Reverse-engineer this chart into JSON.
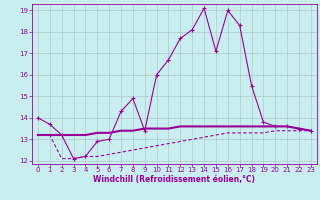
{
  "xlabel": "Windchill (Refroidissement éolien,°C)",
  "background_color": "#c8eef0",
  "grid_color": "#b0c8c8",
  "line_color": "#990099",
  "xmin": 0,
  "xmax": 23,
  "ymin": 12,
  "ymax": 19,
  "yticks": [
    12,
    13,
    14,
    15,
    16,
    17,
    18,
    19
  ],
  "xticks": [
    0,
    1,
    2,
    3,
    4,
    5,
    6,
    7,
    8,
    9,
    10,
    11,
    12,
    13,
    14,
    15,
    16,
    17,
    18,
    19,
    20,
    21,
    22,
    23
  ],
  "curve1_x": [
    0,
    1,
    2,
    3,
    4,
    5,
    6,
    7,
    8,
    9,
    10,
    11,
    12,
    13,
    14,
    15,
    16,
    17,
    18,
    19,
    20,
    21,
    22,
    23
  ],
  "curve1_y": [
    14.0,
    13.7,
    13.2,
    12.1,
    12.2,
    12.9,
    13.0,
    14.3,
    14.9,
    13.4,
    16.0,
    16.7,
    17.7,
    18.1,
    19.1,
    17.1,
    19.0,
    18.3,
    15.5,
    13.8,
    13.6,
    13.6,
    13.5,
    13.4
  ],
  "curve2_x": [
    0,
    1,
    2,
    3,
    4,
    5,
    6,
    7,
    8,
    9,
    10,
    11,
    12,
    13,
    14,
    15,
    16,
    17,
    18,
    19,
    20,
    21,
    22,
    23
  ],
  "curve2_y": [
    13.2,
    13.2,
    13.2,
    13.2,
    13.2,
    13.3,
    13.3,
    13.4,
    13.4,
    13.5,
    13.5,
    13.5,
    13.6,
    13.6,
    13.6,
    13.6,
    13.6,
    13.6,
    13.6,
    13.6,
    13.6,
    13.6,
    13.5,
    13.4
  ],
  "curve3_x": [
    0,
    1,
    2,
    3,
    4,
    5,
    6,
    7,
    8,
    9,
    10,
    11,
    12,
    13,
    14,
    15,
    16,
    17,
    18,
    19,
    20,
    21,
    22,
    23
  ],
  "curve3_y": [
    13.2,
    13.2,
    12.1,
    12.1,
    12.2,
    12.2,
    12.3,
    12.4,
    12.5,
    12.6,
    12.7,
    12.8,
    12.9,
    13.0,
    13.1,
    13.2,
    13.3,
    13.3,
    13.3,
    13.3,
    13.4,
    13.4,
    13.4,
    13.4
  ],
  "tick_fontsize": 5,
  "xlabel_fontsize": 5.5
}
